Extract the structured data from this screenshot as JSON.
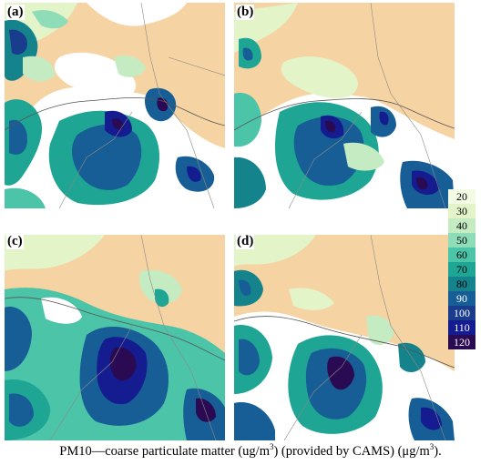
{
  "panels": [
    {
      "label": "(a)"
    },
    {
      "label": "(b)"
    },
    {
      "label": "(c)"
    },
    {
      "label": "(d)"
    }
  ],
  "legend": {
    "levels": [
      20,
      30,
      40,
      50,
      60,
      70,
      80,
      90,
      100,
      110,
      120
    ],
    "colors": [
      "#f4fbe4",
      "#e2f4c8",
      "#c4ebc2",
      "#8fdcb8",
      "#4cc4a8",
      "#1ea594",
      "#15838c",
      "#175e96",
      "#1a3c8c",
      "#141c90",
      "#2a0a52"
    ]
  },
  "colors": {
    "land": "#f6d3a2",
    "sea": "#ffffff",
    "border": "#8a8a8a",
    "coast": "#555555"
  },
  "caption": {
    "main": "PM10—coarse particulate matter (ug/m",
    "sup1": "3",
    "mid": ") (provided by CAMS) (μg/m",
    "sup2": "3",
    "end": ")."
  }
}
